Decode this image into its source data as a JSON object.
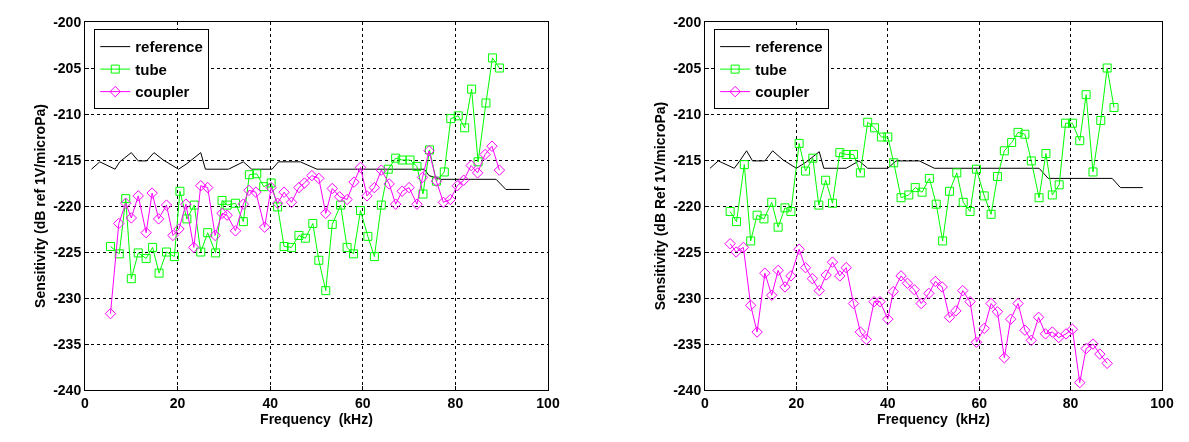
{
  "chart_data": [
    {
      "type": "line",
      "xlabel": "Frequency  (kHz)",
      "ylabel": "Sensitivity (dB ref 1V/microPa)",
      "xlim": [
        0,
        100
      ],
      "xticks": [
        0,
        20,
        40,
        60,
        80,
        100
      ],
      "ylim": [
        -240,
        -200
      ],
      "yticks": [
        -240,
        -235,
        -230,
        -225,
        -220,
        -215,
        -210,
        -205,
        -200
      ],
      "grid": true,
      "legend": "top left",
      "line_style": "solid",
      "series": [
        {
          "name": "reference",
          "color": "#000000",
          "marker": "none",
          "x": [
            1.4,
            3.2,
            6.5,
            7.5,
            10,
            11.5,
            13.3,
            14.9,
            16.9,
            20.2,
            22,
            25,
            26,
            31,
            34.2,
            36,
            40.4,
            41.8,
            46.5,
            50.1,
            73.3,
            74.3,
            76.9,
            88.8,
            90.9,
            96
          ],
          "values": [
            -216,
            -215.2,
            -216,
            -215.2,
            -214.2,
            -215.1,
            -215.1,
            -214.2,
            -215,
            -216,
            -215.4,
            -214.2,
            -216,
            -216,
            -215.2,
            -216,
            -216,
            -215.2,
            -215.2,
            -216,
            -216,
            -216.7,
            -217.1,
            -217.1,
            -218.2,
            -218.2
          ]
        },
        {
          "name": "tube",
          "color": "#00ff00",
          "marker": "square",
          "x": [
            5.5,
            7.4,
            8.8,
            10,
            11.5,
            13.2,
            14.6,
            16,
            17.6,
            19.3,
            20.5,
            22,
            23.6,
            25,
            26.5,
            28.2,
            29.6,
            30.7,
            32.5,
            34.2,
            35.5,
            37.1,
            38.6,
            40.2,
            41.6,
            43,
            44.6,
            46.2,
            47.6,
            49.2,
            50.5,
            52,
            53.4,
            55.2,
            56.6,
            58,
            59.5,
            61.1,
            62.5,
            64,
            65.5,
            67.1,
            68.5,
            70.2,
            71.7,
            73,
            74.4,
            75.9,
            77.6,
            79,
            80.6,
            82,
            83.5,
            84.9,
            86.6,
            88,
            89.5
          ],
          "values": [
            -224.4,
            -225.2,
            -219.2,
            -227.9,
            -225.1,
            -225.7,
            -224.5,
            -227.3,
            -225,
            -225.5,
            -218.4,
            -221.4,
            -219.9,
            -225,
            -222.9,
            -225.1,
            -219.4,
            -219.9,
            -219.7,
            -221.7,
            -216.6,
            -216.5,
            -217.9,
            -217.5,
            -220.1,
            -224.4,
            -224.5,
            -223.2,
            -223.5,
            -221.9,
            -225.9,
            -229.2,
            -222,
            -219.9,
            -224.5,
            -225.2,
            -220.5,
            -223.3,
            -225.5,
            -219.9,
            -216,
            -214.8,
            -215,
            -215,
            -215.7,
            -218.7,
            -213.9,
            -217.3,
            -216.3,
            -210.5,
            -210.2,
            -211.5,
            -207.3,
            -215.2,
            -208.8,
            -203.9,
            -205
          ]
        },
        {
          "name": "coupler",
          "color": "#ff00ff",
          "marker": "diamond",
          "x": [
            5.5,
            7.3,
            8.8,
            10,
            11.5,
            13.2,
            14.5,
            15.9,
            17.6,
            19,
            20.3,
            21.8,
            23.5,
            25,
            26.5,
            28.1,
            29.6,
            30.7,
            32.5,
            34.2,
            35.4,
            36.9,
            38.8,
            40.2,
            41.6,
            43,
            44.6,
            46.2,
            47.4,
            49,
            50.5,
            52,
            53.4,
            55,
            56.6,
            58.1,
            59.5,
            60.9,
            62.5,
            64,
            65.7,
            67.1,
            68.5,
            70,
            71.7,
            72.9,
            74.3,
            75.9,
            77.4,
            78.9,
            80.4,
            81.8,
            83.4,
            84.8,
            86.4,
            87.9,
            89.5
          ],
          "values": [
            -231.7,
            -221.9,
            -219.7,
            -221.3,
            -218.9,
            -222.9,
            -218.6,
            -221.4,
            -219.9,
            -223.2,
            -222.5,
            -219.8,
            -224.5,
            -217.8,
            -218,
            -223.2,
            -220.8,
            -221,
            -222.7,
            -219.8,
            -218.3,
            -218.5,
            -222.3,
            -218,
            -219.7,
            -218.5,
            -219.6,
            -218,
            -217.5,
            -216.7,
            -217,
            -220.8,
            -218.1,
            -219,
            -219.3,
            -217.4,
            -215.8,
            -218.9,
            -218,
            -216.1,
            -217.6,
            -219.8,
            -218.4,
            -218,
            -219.8,
            -216.9,
            -214,
            -217.3,
            -219.6,
            -219.3,
            -217.8,
            -217.2,
            -215.6,
            -216.4,
            -214.4,
            -213.5,
            -216.1
          ]
        }
      ]
    },
    {
      "type": "line",
      "xlabel": "Frequency  (kHz)",
      "ylabel": "Sensitivity (dB Ref 1V/microPa)",
      "xlim": [
        0,
        100
      ],
      "xticks": [
        0,
        20,
        40,
        60,
        80,
        100
      ],
      "ylim": [
        -240,
        -200
      ],
      "yticks": [
        -240,
        -235,
        -230,
        -225,
        -220,
        -215,
        -210,
        -205,
        -200
      ],
      "grid": true,
      "legend": "top left",
      "line_style": "solid",
      "series": [
        {
          "name": "reference",
          "color": "#000000",
          "marker": "none",
          "x": [
            1.1,
            2.9,
            6.4,
            7.6,
            9.1,
            10.4,
            13.1,
            14.8,
            17.1,
            20,
            22.2,
            25,
            26,
            30.9,
            33.7,
            35.6,
            40,
            41.8,
            46.9,
            50.2,
            73.1,
            75.1,
            89.1,
            90.9,
            95.8
          ],
          "values": [
            -215.9,
            -215.1,
            -215.9,
            -215.1,
            -214,
            -215.1,
            -215.1,
            -214,
            -215,
            -215.9,
            -215.2,
            -214.1,
            -215.9,
            -215.9,
            -215.1,
            -215.9,
            -215.9,
            -215.1,
            -215.1,
            -215.9,
            -215.9,
            -217,
            -217,
            -218,
            -218
          ]
        },
        {
          "name": "tube",
          "color": "#00ff00",
          "marker": "square",
          "x": [
            5.5,
            6.9,
            8.6,
            10,
            11.4,
            12.9,
            14.6,
            16,
            17.5,
            18.8,
            20.6,
            22,
            23.6,
            24.9,
            26.4,
            27.9,
            29.5,
            30.9,
            32.5,
            34,
            35.6,
            37.1,
            38.6,
            40,
            41.3,
            42.9,
            44.6,
            46,
            47.5,
            49.1,
            50.6,
            52,
            53.5,
            55.1,
            56.5,
            58,
            59.4,
            61.1,
            62.6,
            64,
            65.5,
            67.1,
            68.5,
            70,
            71.4,
            73.1,
            74.6,
            76,
            77.5,
            78.9,
            80.4,
            82,
            83.4,
            84.9,
            86.6,
            88,
            89.5
          ],
          "values": [
            -220.6,
            -221.7,
            -215.5,
            -223.8,
            -221,
            -221.4,
            -219.6,
            -222.3,
            -220.2,
            -220.6,
            -213.2,
            -216.2,
            -214.8,
            -219.9,
            -217.2,
            -219.7,
            -214.2,
            -214.4,
            -214.4,
            -216.4,
            -210.9,
            -211.5,
            -212.5,
            -212.5,
            -215.3,
            -219.1,
            -218.8,
            -218,
            -218.5,
            -217,
            -219.8,
            -223.8,
            -218.4,
            -216.4,
            -219.6,
            -220.6,
            -216,
            -218.9,
            -220.9,
            -216.8,
            -214,
            -213.1,
            -212,
            -212.2,
            -215.1,
            -219.1,
            -214.3,
            -218.8,
            -217.7,
            -211,
            -211,
            -212.9,
            -207.9,
            -216.3,
            -210.7,
            -205,
            -209.3
          ]
        },
        {
          "name": "coupler",
          "color": "#ff00ff",
          "marker": "diamond",
          "x": [
            5.5,
            6.8,
            8.4,
            10,
            11.4,
            13.1,
            14.6,
            16,
            17.5,
            18.8,
            20.6,
            22,
            23.5,
            25,
            26.5,
            27.9,
            29.5,
            30.9,
            32.5,
            34,
            35.3,
            37,
            38.3,
            40,
            41.2,
            42.9,
            44.3,
            45.8,
            47.3,
            49,
            50.4,
            51.9,
            53.5,
            54.9,
            56.4,
            58,
            59.4,
            61.1,
            62.6,
            64,
            65.5,
            66.9,
            68.5,
            70,
            71.4,
            73,
            74.5,
            76,
            77.4,
            79,
            80.4,
            82,
            83.4,
            84.9,
            86.4,
            88
          ],
          "values": [
            -224.1,
            -225,
            -224.5,
            -230.8,
            -233.7,
            -227.3,
            -229.7,
            -227,
            -228.8,
            -227.6,
            -224.7,
            -226.7,
            -227.9,
            -229.2,
            -227.5,
            -226.1,
            -227.6,
            -226.7,
            -230.6,
            -233.7,
            -234.5,
            -230.4,
            -230.4,
            -232.3,
            -229.3,
            -227.6,
            -228.4,
            -229.1,
            -230.6,
            -229.5,
            -228.2,
            -228.8,
            -232.1,
            -231.4,
            -229.2,
            -230.4,
            -234.8,
            -233.3,
            -230.6,
            -231.5,
            -236.5,
            -232.3,
            -230.6,
            -233.5,
            -234.6,
            -232.1,
            -233.9,
            -233.7,
            -234.3,
            -233.9,
            -233.4,
            -239.2,
            -235.5,
            -235,
            -236.1,
            -237.1
          ]
        }
      ]
    }
  ]
}
